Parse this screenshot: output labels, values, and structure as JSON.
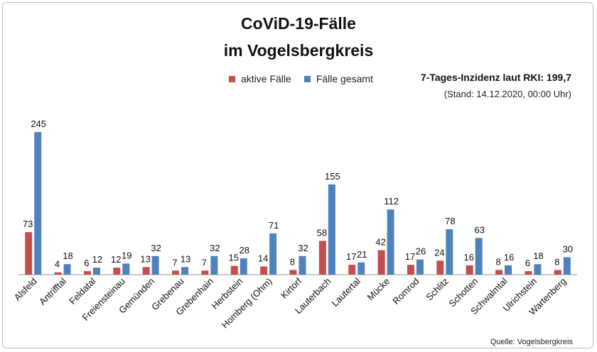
{
  "title_line1": "CoViD-19-Fälle",
  "title_line2": "im Vogelsbergkreis",
  "incidence_text": "7-Tages-Inzidenz laut RKI: 199,7",
  "date_text": "(Stand: 14.12.2020, 00:00 Uhr)",
  "source_text": "Quelle: Vogelsbergkreis",
  "colors": {
    "active": "#c0504d",
    "total": "#4f81bd"
  },
  "chart_data": {
    "type": "bar",
    "categories": [
      "Alsfeld",
      "Antrifftal",
      "Feldatal",
      "Freiensteinau",
      "Gemünden",
      "Grebenau",
      "Grebenhain",
      "Herbstein",
      "Homberg (Ohm)",
      "Kirtorf",
      "Lauterbach",
      "Lautertal",
      "Mücke",
      "Romrod",
      "Schlitz",
      "Schotten",
      "Schwalmtal",
      "Ulrichstein",
      "Wartenberg"
    ],
    "series": [
      {
        "name": "aktive Fälle",
        "values": [
          73,
          4,
          6,
          12,
          13,
          7,
          7,
          15,
          14,
          8,
          58,
          17,
          42,
          17,
          24,
          16,
          8,
          6,
          8
        ]
      },
      {
        "name": "Fälle gesamt",
        "values": [
          245,
          18,
          12,
          19,
          32,
          13,
          32,
          28,
          71,
          32,
          155,
          21,
          112,
          26,
          78,
          63,
          16,
          18,
          30
        ]
      }
    ],
    "ylim": [
      0,
      260
    ],
    "grid": false,
    "legend_position": "top"
  }
}
